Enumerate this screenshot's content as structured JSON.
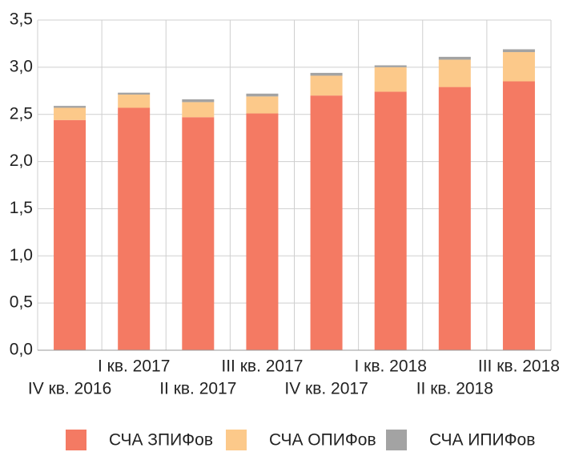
{
  "chart_data": {
    "type": "stacked_bar",
    "categories": [
      "IV кв. 2016",
      "I кв. 2017",
      "II кв. 2017",
      "III кв. 2017",
      "IV кв. 2017",
      "I кв. 2018",
      "II кв. 2018",
      "III кв. 2018"
    ],
    "series": [
      {
        "name": "СЧА ЗПИФов",
        "color": "#f47a63",
        "values": [
          2.44,
          2.57,
          2.47,
          2.51,
          2.7,
          2.74,
          2.79,
          2.85
        ]
      },
      {
        "name": "СЧА ОПИФов",
        "color": "#fcc98a",
        "values": [
          0.13,
          0.14,
          0.16,
          0.18,
          0.21,
          0.26,
          0.29,
          0.31
        ]
      },
      {
        "name": "СЧА ИПИФов",
        "color": "#a3a3a3",
        "values": [
          0.02,
          0.02,
          0.03,
          0.03,
          0.03,
          0.02,
          0.03,
          0.03
        ]
      }
    ],
    "ylim": [
      0,
      3.5
    ],
    "yticks": [
      {
        "value": 0,
        "label": "0,0"
      },
      {
        "value": 0.5,
        "label": "0,5"
      },
      {
        "value": 1,
        "label": "1,0"
      },
      {
        "value": 1.5,
        "label": "1,5"
      },
      {
        "value": 2,
        "label": "2,0"
      },
      {
        "value": 2.5,
        "label": "2,5"
      },
      {
        "value": 3,
        "label": "3,0"
      },
      {
        "value": 3.5,
        "label": "3,5"
      }
    ],
    "grid": true,
    "legend": "bottom"
  }
}
